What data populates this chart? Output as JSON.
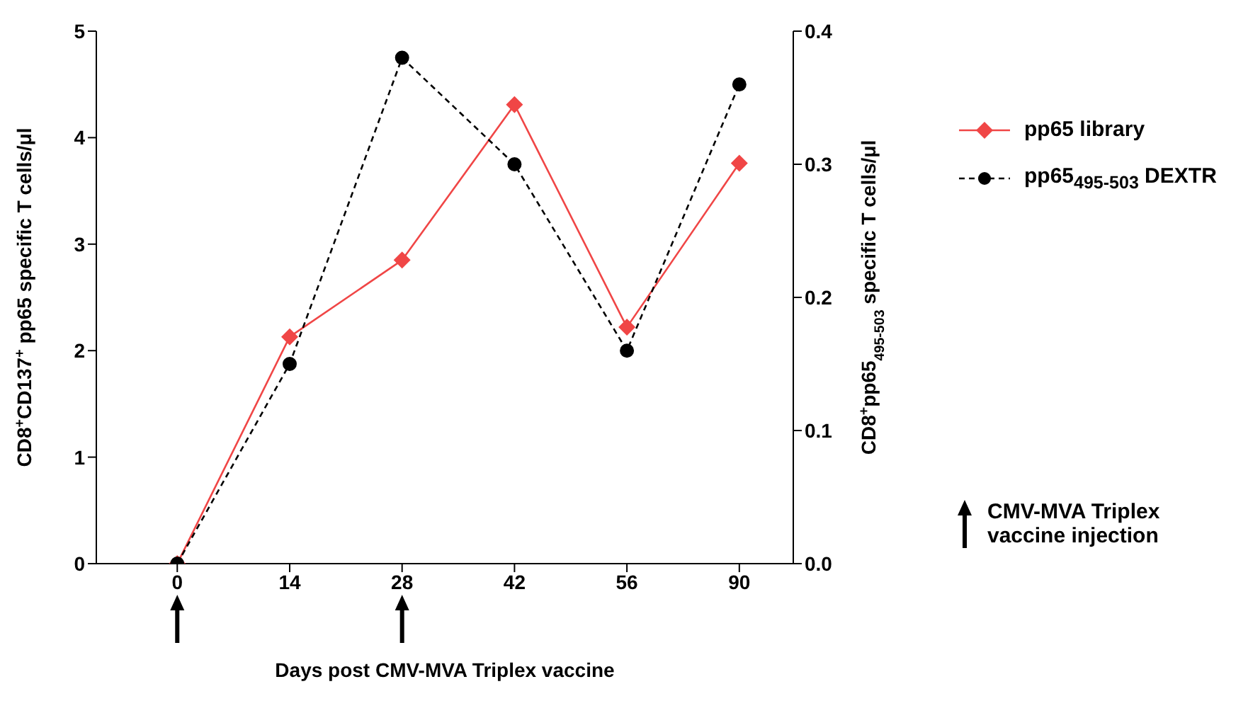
{
  "chart_data": {
    "type": "line",
    "xlabel": "Days post CMV-MVA Triplex vaccine",
    "ylabel": "CD8$^{+}$CD137$^{+}$ pp65 specific T cells/μl",
    "y2label": "CD8$^{+}$pp65$_{495-503}$  specific T cells/μl",
    "categories": [
      "0",
      "14",
      "28",
      "42",
      "56",
      "90"
    ],
    "series": [
      {
        "name": "pp65 library",
        "color": "#f04646",
        "values": [
          0,
          2.13,
          2.85,
          4.31,
          2.22,
          3.76
        ],
        "marker": "diamond",
        "line_style": "solid"
      },
      {
        "name": "pp65$_{495-503}$ DEXTR",
        "color": "#000000",
        "values": [
          0,
          0.15,
          0.38,
          0.3,
          0.16,
          0.36
        ],
        "axis": "y2",
        "marker": "circle",
        "line_style": "dashed"
      }
    ],
    "ylim": [
      0,
      5
    ],
    "yticks": [
      0,
      1,
      2,
      3,
      4,
      5
    ],
    "y2lim": [
      0,
      0.4
    ],
    "y2ticks": [
      {
        "value": 0,
        "label": "0.0"
      },
      0.1,
      0.2,
      0.3,
      0.4
    ],
    "grid": false,
    "legend": "right",
    "annotations": [
      "CMV-MVA Triplex vaccine injection"
    ]
  }
}
